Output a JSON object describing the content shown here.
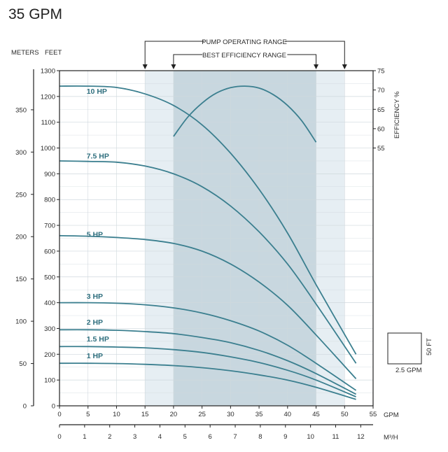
{
  "chart_data": {
    "type": "line",
    "title": "35 GPM",
    "xlabel": "GPM",
    "x2label": "M³/H",
    "ylabel_left_outer": "METERS",
    "ylabel_left": "FEET",
    "ylabel_right": "EFFICIENCY %",
    "xlim": [
      0,
      55
    ],
    "ylim": [
      0,
      1300
    ],
    "x_ticks": [
      0,
      5,
      10,
      15,
      20,
      25,
      30,
      35,
      40,
      45,
      50,
      55
    ],
    "x2_ticks": [
      0,
      1,
      2,
      3,
      4,
      5,
      6,
      7,
      8,
      9,
      10,
      11,
      12
    ],
    "y_ticks": [
      0,
      100,
      200,
      300,
      400,
      500,
      600,
      700,
      800,
      900,
      1000,
      1100,
      1200,
      1300
    ],
    "meters_ticks": [
      0,
      50,
      100,
      150,
      200,
      250,
      300,
      350
    ],
    "efficiency_ticks": [
      55,
      60,
      65,
      70,
      75
    ],
    "efficiency_range": [
      50,
      75
    ],
    "pump_operating_range": {
      "label": "PUMP OPERATING RANGE",
      "x": [
        15,
        50
      ]
    },
    "best_efficiency_range": {
      "label": "BEST EFFICIENCY RANGE",
      "x": [
        20,
        45
      ]
    },
    "series": [
      {
        "name": "10 HP",
        "label_x": 5,
        "label_y": 1210,
        "x": [
          0,
          5,
          10,
          15,
          20,
          25,
          30,
          35,
          40,
          45,
          52
        ],
        "y": [
          1240,
          1240,
          1235,
          1210,
          1165,
          1090,
          980,
          840,
          670,
          470,
          200
        ]
      },
      {
        "name": "7.5 HP",
        "label_x": 5,
        "label_y": 960,
        "x": [
          0,
          5,
          10,
          15,
          20,
          25,
          30,
          35,
          40,
          45,
          52
        ],
        "y": [
          950,
          948,
          945,
          930,
          900,
          850,
          775,
          675,
          550,
          395,
          165
        ]
      },
      {
        "name": "5 HP",
        "label_x": 5,
        "label_y": 655,
        "x": [
          0,
          5,
          10,
          15,
          20,
          25,
          30,
          35,
          40,
          45,
          52
        ],
        "y": [
          660,
          658,
          653,
          645,
          630,
          600,
          550,
          480,
          390,
          275,
          105
        ]
      },
      {
        "name": "3 HP",
        "label_x": 5,
        "label_y": 415,
        "x": [
          0,
          5,
          10,
          15,
          20,
          25,
          30,
          35,
          40,
          45,
          52
        ],
        "y": [
          400,
          400,
          398,
          392,
          380,
          360,
          330,
          290,
          235,
          165,
          60
        ]
      },
      {
        "name": "2 HP",
        "label_x": 5,
        "label_y": 315,
        "x": [
          0,
          5,
          10,
          15,
          20,
          25,
          30,
          35,
          40,
          45,
          52
        ],
        "y": [
          295,
          295,
          293,
          288,
          280,
          265,
          245,
          215,
          175,
          125,
          45
        ]
      },
      {
        "name": "1.5 HP",
        "label_x": 5,
        "label_y": 250,
        "x": [
          0,
          5,
          10,
          15,
          20,
          25,
          30,
          35,
          40,
          45,
          52
        ],
        "y": [
          230,
          230,
          228,
          225,
          218,
          207,
          190,
          168,
          138,
          100,
          35
        ]
      },
      {
        "name": "1 HP",
        "label_x": 5,
        "label_y": 185,
        "x": [
          0,
          5,
          10,
          15,
          20,
          25,
          30,
          35,
          40,
          45,
          52
        ],
        "y": [
          165,
          165,
          164,
          161,
          156,
          148,
          136,
          120,
          100,
          72,
          25
        ]
      }
    ],
    "efficiency_curve": {
      "x": [
        20,
        22.5,
        25,
        27.5,
        30,
        32.5,
        35,
        37.5,
        40,
        42.5,
        45
      ],
      "y": [
        58,
        63,
        66.6,
        69.2,
        70.6,
        71,
        70.5,
        68.8,
        66,
        62,
        56.5
      ]
    },
    "scale_box": {
      "x_label": "2.5 GPM",
      "y_label": "50 FT"
    },
    "grid": true,
    "colors": {
      "curve": "#3b7f8f",
      "operating_band": "#e6eef3",
      "efficiency_band": "#c8d7df",
      "grid": "#cfd8dd"
    }
  }
}
